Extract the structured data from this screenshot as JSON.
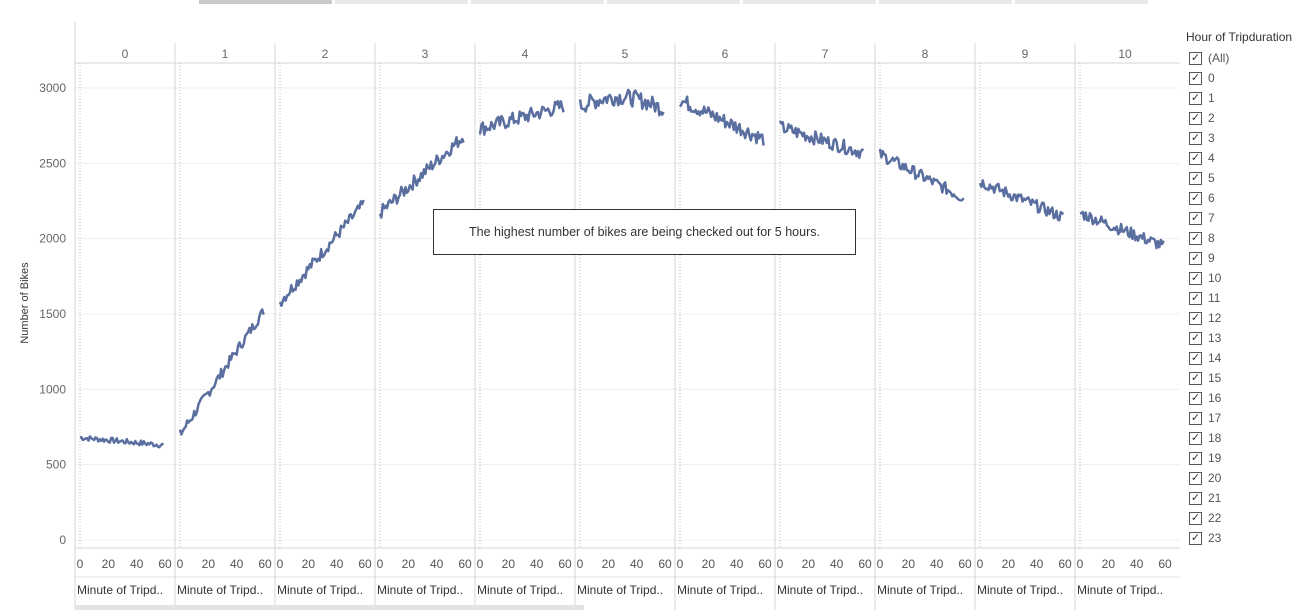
{
  "chart_data": {
    "type": "line",
    "column_header": "",
    "panels": [
      "0",
      "1",
      "2",
      "3",
      "4",
      "5",
      "6",
      "7",
      "8",
      "9",
      "10"
    ],
    "panel_xlabel": "Minute of Tripd..",
    "x_ticks": [
      "0",
      "20",
      "40",
      "60"
    ],
    "ylabel": "Number of Bikes",
    "y_ticks": [
      "0",
      "500",
      "1000",
      "1500",
      "2000",
      "2500",
      "3000"
    ],
    "ylim": [
      0,
      3200
    ],
    "xlim": [
      0,
      60
    ],
    "series": [
      {
        "panel": "0",
        "start": 680,
        "end": 630,
        "peak": null,
        "noise": 18
      },
      {
        "panel": "1",
        "start": 700,
        "end": 1520,
        "peak": null,
        "noise": 35
      },
      {
        "panel": "2",
        "start": 1580,
        "end": 2230,
        "peak": null,
        "noise": 40
      },
      {
        "panel": "3",
        "start": 2170,
        "end": 2680,
        "peak": null,
        "noise": 45
      },
      {
        "panel": "4",
        "start": 2730,
        "end": 2880,
        "peak": null,
        "noise": 50
      },
      {
        "panel": "5",
        "start": 2880,
        "end": 2860,
        "peak": 2950,
        "noise": 55
      },
      {
        "panel": "6",
        "start": 2920,
        "end": 2660,
        "peak": null,
        "noise": 50
      },
      {
        "panel": "7",
        "start": 2740,
        "end": 2570,
        "peak": null,
        "noise": 45
      },
      {
        "panel": "8",
        "start": 2560,
        "end": 2270,
        "peak": null,
        "noise": 40
      },
      {
        "panel": "9",
        "start": 2380,
        "end": 2140,
        "peak": null,
        "noise": 40
      },
      {
        "panel": "10",
        "start": 2170,
        "end": 1950,
        "peak": null,
        "noise": 40
      }
    ],
    "line_color": "#5a6fa0",
    "grid": true,
    "legend_placement": "right"
  },
  "annotation": {
    "text": "The highest number of bikes are being checked out for 5 hours."
  },
  "filter": {
    "title": "Hour of Tripduration",
    "check_glyph": "✓",
    "items": [
      "(All)",
      "0",
      "1",
      "2",
      "3",
      "4",
      "5",
      "6",
      "7",
      "8",
      "9",
      "10",
      "11",
      "12",
      "13",
      "14",
      "15",
      "16",
      "17",
      "18",
      "19",
      "20",
      "21",
      "22",
      "23"
    ]
  }
}
